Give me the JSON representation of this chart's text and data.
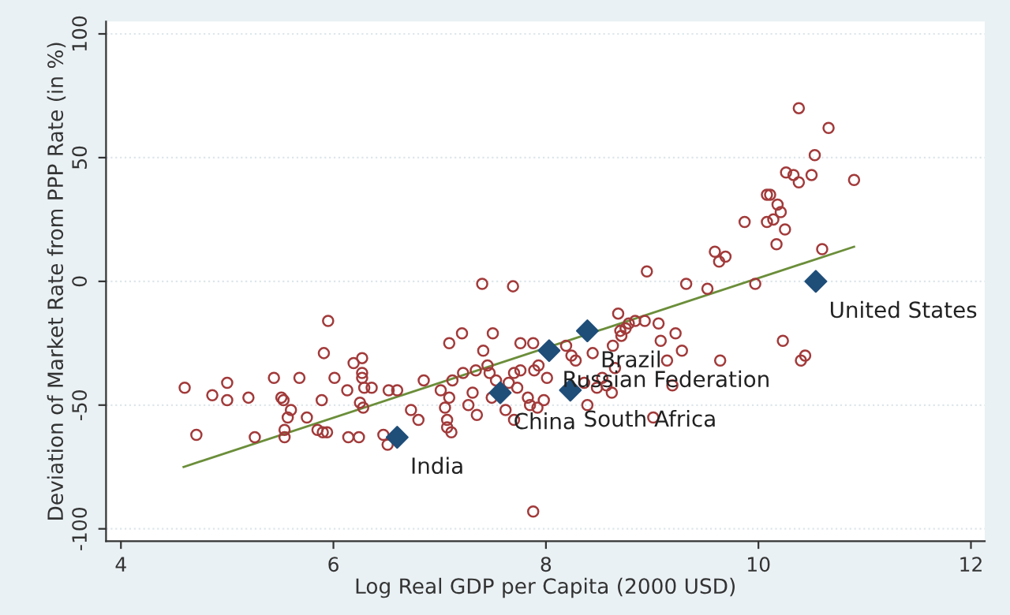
{
  "chart_data": {
    "type": "scatter",
    "xlabel": "Log Real GDP per Capita (2000 USD)",
    "ylabel": "Deviation of Market Rate from PPP Rate (in %)",
    "xlim": [
      3.86,
      12.13
    ],
    "ylim": [
      -105,
      105
    ],
    "xticks": [
      4,
      6,
      8,
      10,
      12
    ],
    "yticks": [
      -100,
      -50,
      0,
      50,
      100
    ],
    "grid": "y",
    "series": [
      {
        "marker": "circle",
        "color": "#a23a3a",
        "x": [
          4.6,
          4.71,
          4.86,
          5.0,
          5.0,
          5.2,
          5.26,
          5.44,
          5.51,
          5.53,
          5.6,
          5.57,
          5.54,
          5.54,
          5.68,
          5.75,
          5.89,
          5.85,
          5.9,
          5.94,
          5.91,
          5.95,
          6.01,
          6.13,
          6.14,
          6.19,
          6.24,
          6.27,
          6.27,
          6.27,
          6.25,
          6.29,
          6.28,
          6.36,
          6.47,
          6.51,
          6.52,
          6.6,
          6.73,
          6.8,
          6.85,
          7.01,
          7.05,
          7.07,
          7.07,
          7.09,
          7.09,
          7.11,
          7.12,
          7.21,
          7.22,
          7.27,
          7.31,
          7.34,
          7.35,
          7.4,
          7.41,
          7.45,
          7.47,
          7.49,
          7.5,
          7.53,
          7.62,
          7.65,
          7.69,
          7.7,
          7.7,
          7.73,
          7.76,
          7.76,
          7.83,
          7.85,
          7.88,
          7.89,
          7.92,
          7.88,
          7.93,
          7.98,
          8.01,
          8.19,
          8.24,
          8.28,
          8.36,
          8.39,
          8.44,
          8.48,
          8.53,
          8.57,
          8.62,
          8.63,
          8.65,
          8.68,
          8.7,
          8.71,
          8.75,
          8.78,
          8.84,
          8.93,
          8.95,
          9.01,
          9.06,
          9.08,
          9.14,
          9.19,
          9.22,
          9.28,
          9.32,
          9.52,
          9.59,
          9.63,
          9.69,
          9.64,
          9.87,
          9.97,
          10.08,
          10.11,
          10.08,
          10.14,
          10.18,
          10.21,
          10.17,
          10.23,
          10.25,
          10.26,
          10.33,
          10.38,
          10.38,
          10.4,
          10.44,
          10.5,
          10.53,
          10.6,
          10.66,
          10.9
        ],
        "values": [
          -43,
          -62,
          -46,
          -41,
          -48,
          -47,
          -63,
          -39,
          -47,
          -48,
          -52,
          -55,
          -60,
          -63,
          -39,
          -55,
          -48,
          -60,
          -61,
          -61,
          -29,
          -16,
          -39,
          -44,
          -63,
          -33,
          -63,
          -31,
          -37,
          -39,
          -49,
          -43,
          -51,
          -43,
          -62,
          -66,
          -44,
          -44,
          -52,
          -56,
          -40,
          -44,
          -51,
          -56,
          -59,
          -47,
          -25,
          -61,
          -40,
          -21,
          -37,
          -50,
          -45,
          -36,
          -54,
          -1,
          -28,
          -34,
          -37,
          -47,
          -21,
          -40,
          -52,
          -41,
          -2,
          -56,
          -37,
          -43,
          -25,
          -36,
          -47,
          -50,
          -25,
          -36,
          -51,
          -93,
          -34,
          -48,
          -39,
          -26,
          -30,
          -32,
          -41,
          -50,
          -29,
          -43,
          -39,
          -42,
          -45,
          -26,
          -35,
          -13,
          -20,
          -22,
          -19,
          -17,
          -16,
          -16,
          4,
          -55,
          -17,
          -24,
          -32,
          -42,
          -21,
          -28,
          -1,
          -3,
          12,
          8,
          10,
          -32,
          24,
          -1,
          35,
          35,
          24,
          25,
          31,
          28,
          15,
          -24,
          21,
          44,
          43,
          70,
          40,
          -32,
          -30,
          43,
          51,
          13,
          62,
          41
        ]
      },
      {
        "marker": "diamond",
        "color": "#1f4e79",
        "x": [
          6.6,
          7.57,
          8.39,
          8.03,
          8.23,
          10.54
        ],
        "values": [
          -63,
          -45,
          -20,
          -28,
          -44,
          0
        ]
      },
      {
        "type": "line",
        "color": "#6b8e3a",
        "x": [
          4.59,
          10.9
        ],
        "values": [
          -75,
          14
        ]
      }
    ],
    "annotations": [
      {
        "text": "India",
        "x": 6.6,
        "y": -63
      },
      {
        "text": "China",
        "x": 7.57,
        "y": -45
      },
      {
        "text": "Brazil",
        "x": 8.39,
        "y": -20
      },
      {
        "text": "Russian Federation",
        "x": 8.03,
        "y": -28
      },
      {
        "text": "South Africa",
        "x": 8.23,
        "y": -44
      },
      {
        "text": "United States",
        "x": 10.54,
        "y": 0
      }
    ]
  }
}
